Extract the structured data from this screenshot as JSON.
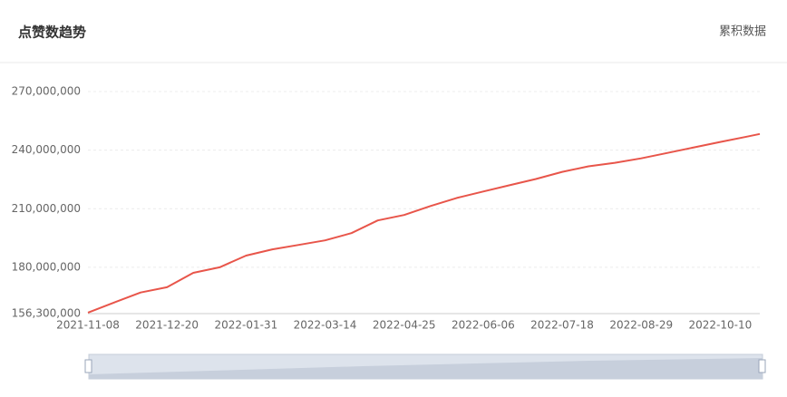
{
  "header": {
    "title": "点赞数趋势",
    "action": "累积数据"
  },
  "chart_data": {
    "type": "line",
    "x": [
      "2021-11-08",
      "2021-11-22",
      "2021-12-06",
      "2021-12-20",
      "2022-01-03",
      "2022-01-17",
      "2022-01-31",
      "2022-02-14",
      "2022-02-28",
      "2022-03-14",
      "2022-03-28",
      "2022-04-11",
      "2022-04-25",
      "2022-05-09",
      "2022-05-23",
      "2022-06-06",
      "2022-06-20",
      "2022-07-04",
      "2022-07-18",
      "2022-08-01",
      "2022-08-15",
      "2022-08-29",
      "2022-09-12",
      "2022-09-26",
      "2022-10-10",
      "2022-10-24",
      "2022-10-31"
    ],
    "series": [
      {
        "name": "点赞数",
        "color": "#e8554a",
        "values": [
          156800000,
          162000000,
          167100000,
          169800000,
          177200000,
          180000000,
          186000000,
          189200000,
          191500000,
          193800000,
          197500000,
          204000000,
          206800000,
          211400000,
          215500000,
          218800000,
          222000000,
          225200000,
          228900000,
          231700000,
          233500000,
          235800000,
          238600000,
          241400000,
          244200000,
          246900000,
          248300000
        ]
      }
    ],
    "xlim": [
      "2021-11-08",
      "2022-10-31"
    ],
    "xticks": [
      "2021-11-08",
      "2021-12-20",
      "2022-01-31",
      "2022-03-14",
      "2022-04-25",
      "2022-06-06",
      "2022-07-18",
      "2022-08-29",
      "2022-10-10"
    ],
    "ylim": [
      156300000,
      270000000
    ],
    "yticks": [
      {
        "value": 156300000,
        "label": "156,300,000"
      },
      {
        "value": 180000000,
        "label": "180,000,000"
      },
      {
        "value": 210000000,
        "label": "210,000,000"
      },
      {
        "value": 240000000,
        "label": "240,000,000"
      },
      {
        "value": 270000000,
        "label": "270,000,000"
      }
    ],
    "grid": true
  }
}
